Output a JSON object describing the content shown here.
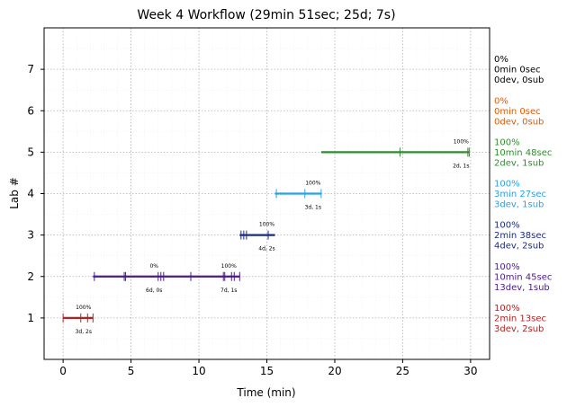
{
  "chart_data": {
    "type": "timeline",
    "title": "Week 4 Workflow (29min 51sec; 25d; 7s)",
    "xlabel": "Time (min)",
    "ylabel": "Lab #",
    "xlim": [
      -1.4,
      31.4
    ],
    "ylim": [
      8.0,
      0.0
    ],
    "x_ticks": [
      0,
      5,
      10,
      15,
      20,
      25,
      30
    ],
    "y_ticks": [
      1,
      2,
      3,
      4,
      5,
      6,
      7
    ],
    "grid": true,
    "labs": [
      {
        "lab": 1,
        "color": "#b22222",
        "segments": [
          [
            0.0,
            2.2
          ]
        ],
        "commits": [
          0.0,
          1.3,
          1.8,
          2.2
        ],
        "annotations": [
          {
            "x": 1.5,
            "top": "100%",
            "bottom": "3d, 2s"
          }
        ],
        "summary": [
          "100%",
          "2min 13sec",
          "3dev, 2sub"
        ]
      },
      {
        "lab": 2,
        "color": "#4b1a8e",
        "segments": [
          [
            2.2,
            13.0
          ]
        ],
        "commits": [
          2.3,
          4.5,
          4.6,
          7.0,
          7.2,
          7.4,
          9.4,
          11.8,
          11.9,
          12.4,
          12.6,
          13.0
        ],
        "annotations": [
          {
            "x": 6.7,
            "top": "0%",
            "bottom": "6d, 0s"
          },
          {
            "x": 12.2,
            "top": "100%",
            "bottom": "7d, 1s"
          }
        ],
        "summary": [
          "100%",
          "10min 45sec",
          "13dev, 1sub"
        ]
      },
      {
        "lab": 3,
        "color": "#1c2a80",
        "segments": [
          [
            13.0,
            15.6
          ]
        ],
        "commits": [
          13.1,
          13.3,
          13.5,
          15.1
        ],
        "annotations": [
          {
            "x": 15.0,
            "top": "100%",
            "bottom": "4d, 2s"
          }
        ],
        "summary": [
          "100%",
          "2min 38sec",
          "4dev, 2sub"
        ]
      },
      {
        "lab": 4,
        "color": "#2aa0e6",
        "segments": [
          [
            15.6,
            19.0
          ]
        ],
        "commits": [
          15.7,
          17.8,
          19.0
        ],
        "annotations": [
          {
            "x": 18.4,
            "top": "100%",
            "bottom": "3d, 1s"
          }
        ],
        "summary": [
          "100%",
          "3min 27sec",
          "3dev, 1sub"
        ]
      },
      {
        "lab": 5,
        "color": "#2e8b2e",
        "segments": [
          [
            19.0,
            29.9
          ]
        ],
        "commits": [
          24.8,
          29.8,
          29.9
        ],
        "annotations": [
          {
            "x": 29.3,
            "top": "100%",
            "bottom": "2d, 1s"
          }
        ],
        "summary": [
          "100%",
          "10min 48sec",
          "2dev, 1sub"
        ]
      },
      {
        "lab": 6,
        "color": "#e05a00",
        "segments": [],
        "commits": [],
        "annotations": [],
        "summary": [
          "0%",
          "0min 0sec",
          "0dev, 0sub"
        ]
      },
      {
        "lab": 7,
        "color": "#000000",
        "segments": [],
        "commits": [],
        "annotations": [],
        "summary": [
          "0%",
          "0min 0sec",
          "0dev, 0sub"
        ]
      }
    ]
  }
}
